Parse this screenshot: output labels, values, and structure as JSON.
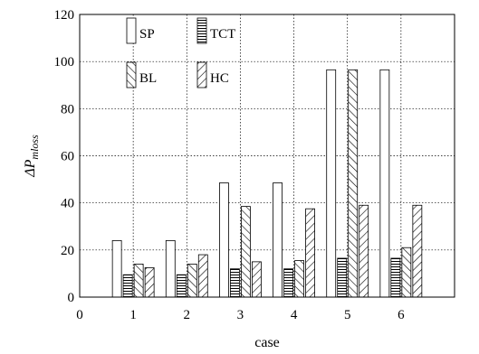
{
  "chart_data": {
    "type": "bar",
    "xlabel": "case",
    "ylabel_main": "ΔP",
    "ylabel_sub": "mloss",
    "ylim": [
      0,
      120
    ],
    "yticks": [
      0,
      20,
      40,
      60,
      80,
      100,
      120
    ],
    "xlim": [
      0,
      7
    ],
    "xticks": [
      0,
      1,
      2,
      3,
      4,
      5,
      6
    ],
    "categories": [
      "1",
      "2",
      "3",
      "4",
      "5",
      "6"
    ],
    "grid": "dotted",
    "legend_position": "top-left",
    "series": [
      {
        "name": "SP",
        "pattern": "none",
        "values": [
          24,
          24,
          48.5,
          48.5,
          96.5,
          96.5
        ]
      },
      {
        "name": "TCT",
        "pattern": "horizontal",
        "values": [
          9.5,
          9.5,
          12,
          12,
          16.5,
          16.5
        ]
      },
      {
        "name": "BL",
        "pattern": "backslash",
        "values": [
          14,
          14,
          38.5,
          15.5,
          96.5,
          21
        ]
      },
      {
        "name": "HC",
        "pattern": "slash",
        "values": [
          12.5,
          18,
          15,
          37.5,
          39,
          39
        ]
      }
    ]
  }
}
